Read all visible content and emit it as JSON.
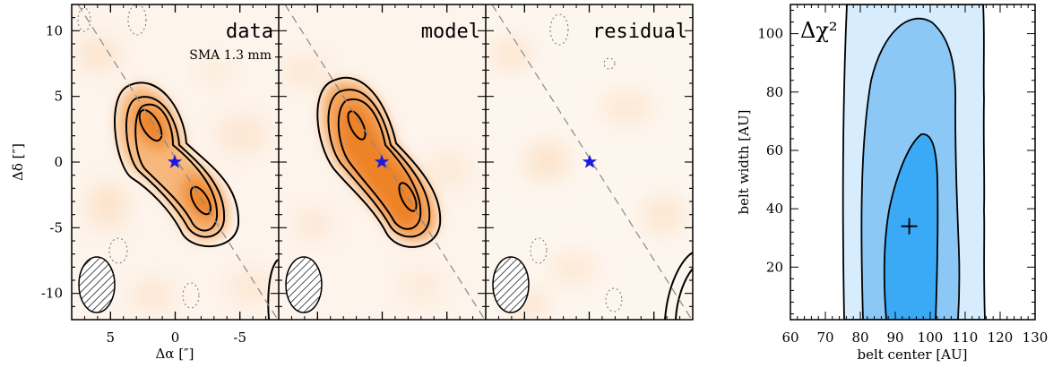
{
  "panels": {
    "data_label": "data",
    "data_sublabel": "SMA 1.3 mm",
    "model_label": "model",
    "residual_label": "residual"
  },
  "map_axes": {
    "xlabel": "Δα [″]",
    "ylabel": "Δδ [″]",
    "xticks": [
      5,
      0,
      -5
    ],
    "yticks": [
      10,
      5,
      0,
      -5,
      -10
    ],
    "xlim": [
      8,
      -8
    ],
    "ylim": [
      -12,
      12
    ]
  },
  "chi2_panel": {
    "label": "Δχ²",
    "xlabel": "belt center [AU]",
    "ylabel": "belt width [AU]",
    "xticks": [
      60,
      70,
      80,
      90,
      100,
      110,
      120,
      130
    ],
    "yticks": [
      20,
      40,
      60,
      80,
      100
    ],
    "xlim": [
      60,
      130
    ],
    "ylim": [
      2,
      110
    ],
    "best_fit": {
      "belt_center": 94,
      "belt_width": 34
    }
  },
  "colors": {
    "map_cmap": "#f08a28",
    "contour_1": "#3aaaf6",
    "contour_2": "#8cc8f6",
    "contour_3": "#d7ecfc",
    "star": "#1a1adc"
  }
}
